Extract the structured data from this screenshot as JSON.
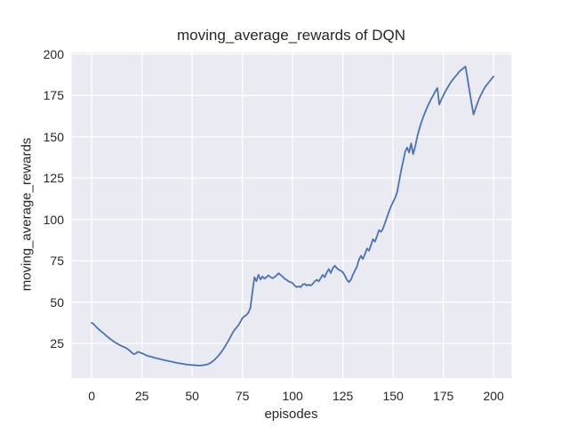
{
  "chart_data": {
    "type": "line",
    "title": "moving_average_rewards of DQN",
    "xlabel": "episodes",
    "ylabel": "moving_average_rewards",
    "x_ticks": [
      0,
      25,
      50,
      75,
      100,
      125,
      150,
      175,
      200
    ],
    "y_ticks": [
      25,
      50,
      75,
      100,
      125,
      150,
      175,
      200
    ],
    "xlim": [
      -10,
      209
    ],
    "ylim": [
      4,
      201
    ],
    "grid": true,
    "legend_position": "none",
    "colors": {
      "line": "#4c72b0",
      "plot_background": "#eaeaf2",
      "grid": "#ffffff",
      "text": "#262626",
      "figure_background": "#ffffff"
    },
    "series": [
      {
        "name": "DQN",
        "x_start": 0,
        "x_step": 1,
        "y": [
          37.4,
          36.6,
          35.3,
          34.1,
          33.0,
          32.0,
          31.0,
          29.9,
          28.9,
          27.9,
          27.0,
          26.1,
          25.3,
          24.6,
          23.9,
          23.3,
          22.8,
          22.3,
          21.5,
          20.5,
          19.4,
          18.4,
          18.9,
          19.9,
          19.5,
          19.0,
          18.4,
          17.9,
          17.4,
          17.1,
          16.8,
          16.4,
          16.1,
          15.8,
          15.5,
          15.2,
          14.9,
          14.6,
          14.4,
          14.1,
          13.9,
          13.6,
          13.3,
          13.1,
          12.9,
          12.7,
          12.5,
          12.3,
          12.1,
          12.0,
          11.9,
          11.8,
          11.7,
          11.6,
          11.6,
          11.7,
          11.9,
          12.1,
          12.5,
          13.1,
          13.9,
          14.9,
          16.1,
          17.4,
          18.9,
          20.6,
          22.4,
          24.4,
          26.5,
          28.7,
          31.0,
          33.0,
          34.4,
          35.9,
          38.0,
          40.2,
          41.4,
          42.1,
          43.6,
          46.5,
          56.0,
          65.0,
          62.6,
          66.5,
          63.6,
          65.5,
          64.1,
          65.1,
          66.1,
          65.1,
          64.4,
          65.1,
          66.1,
          67.4,
          66.4,
          65.4,
          64.1,
          63.5,
          62.5,
          62.0,
          61.5,
          60.0,
          59.0,
          59.5,
          59.0,
          60.5,
          61.0,
          60.0,
          60.5,
          60.0,
          61.0,
          62.5,
          63.5,
          62.5,
          64.5,
          66.5,
          65.0,
          68.0,
          70.0,
          67.5,
          70.5,
          72.0,
          70.5,
          69.5,
          69.0,
          68.0,
          66.0,
          63.5,
          62.0,
          63.5,
          66.5,
          69.0,
          71.5,
          75.5,
          78.0,
          76.0,
          79.0,
          82.5,
          81.0,
          84.5,
          88.0,
          86.5,
          90.0,
          93.5,
          92.5,
          94.5,
          98.0,
          101.5,
          105.0,
          108.0,
          110.5,
          113.0,
          116.5,
          123.0,
          129.5,
          135.0,
          141.0,
          143.5,
          140.5,
          146.0,
          139.5,
          144.0,
          150.0,
          154.5,
          158.5,
          162.0,
          165.0,
          168.0,
          170.5,
          173.0,
          175.0,
          177.5,
          179.5,
          169.5,
          172.5,
          175.0,
          177.5,
          179.5,
          181.5,
          183.5,
          185.0,
          186.5,
          188.0,
          189.5,
          190.5,
          191.5,
          192.5,
          185.5,
          178.0,
          170.5,
          163.5,
          167.0,
          170.5,
          173.5,
          176.0,
          178.5,
          180.5,
          182.0,
          183.5,
          185.0,
          186.5
        ]
      }
    ]
  }
}
